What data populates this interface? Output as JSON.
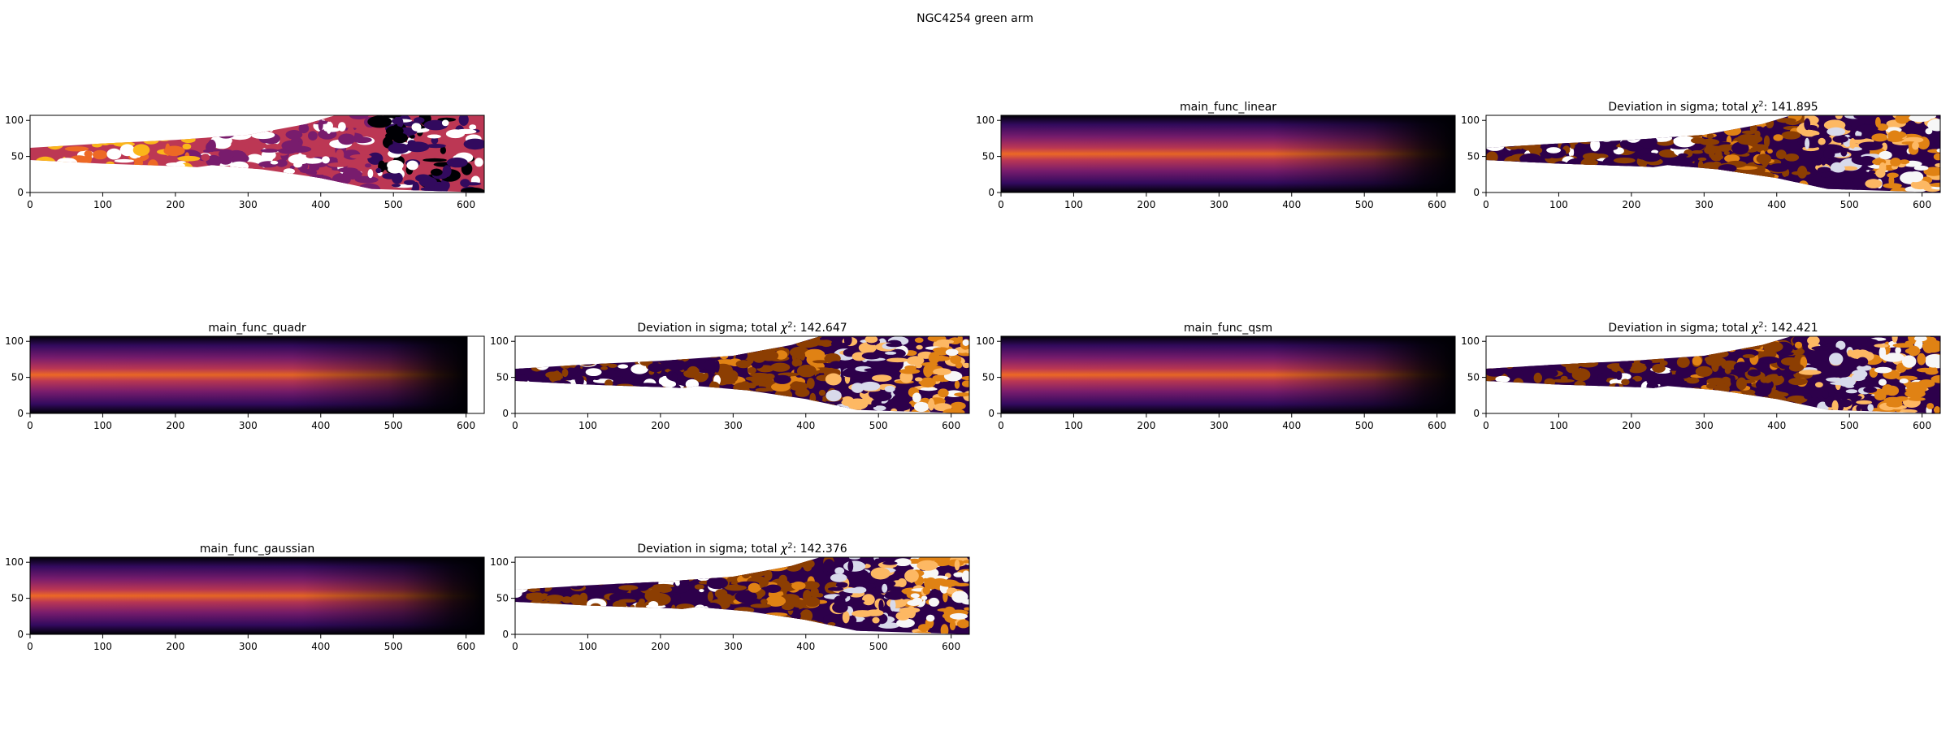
{
  "figure": {
    "suptitle": "NGC4254 green arm"
  },
  "chart_data": [
    {
      "id": "observed",
      "type": "heatmap",
      "title": "",
      "kind": "observed",
      "colormap": "inferno",
      "xlim": [
        0,
        625
      ],
      "ylim": [
        0,
        107
      ],
      "xticks": [
        0,
        100,
        200,
        300,
        400,
        500,
        600
      ],
      "yticks": [
        0,
        50,
        100
      ]
    },
    {
      "id": "linear-model",
      "type": "heatmap",
      "title": "main_func_linear",
      "kind": "model",
      "colormap": "inferno",
      "xlim": [
        0,
        625
      ],
      "ylim": [
        0,
        107
      ],
      "xticks": [
        0,
        100,
        200,
        300,
        400,
        500,
        600
      ],
      "yticks": [
        0,
        50,
        100
      ]
    },
    {
      "id": "linear-deviation",
      "type": "heatmap",
      "title": "Deviation in sigma; total χ²: 141.895",
      "title_prefix": "Deviation in sigma; total ",
      "title_suffix": ": 141.895",
      "chi2": 141.895,
      "kind": "deviation",
      "colormap": "PuOr",
      "xlim": [
        0,
        625
      ],
      "ylim": [
        0,
        107
      ],
      "xticks": [
        0,
        100,
        200,
        300,
        400,
        500,
        600
      ],
      "yticks": [
        0,
        50,
        100
      ]
    },
    {
      "id": "quadr-model",
      "type": "heatmap",
      "title": "main_func_quadr",
      "kind": "model",
      "colormap": "inferno",
      "xlim": [
        0,
        625
      ],
      "ylim": [
        0,
        107
      ],
      "data_xmax": 602,
      "xticks": [
        0,
        100,
        200,
        300,
        400,
        500,
        600
      ],
      "yticks": [
        0,
        50,
        100
      ]
    },
    {
      "id": "quadr-deviation",
      "type": "heatmap",
      "title": "Deviation in sigma; total χ²: 142.647",
      "title_prefix": "Deviation in sigma; total ",
      "title_suffix": ": 142.647",
      "chi2": 142.647,
      "kind": "deviation",
      "colormap": "PuOr",
      "xlim": [
        0,
        625
      ],
      "ylim": [
        0,
        107
      ],
      "xticks": [
        0,
        100,
        200,
        300,
        400,
        500,
        600
      ],
      "yticks": [
        0,
        50,
        100
      ]
    },
    {
      "id": "qsm-model",
      "type": "heatmap",
      "title": "main_func_qsm",
      "kind": "model",
      "colormap": "inferno",
      "xlim": [
        0,
        625
      ],
      "ylim": [
        0,
        107
      ],
      "xticks": [
        0,
        100,
        200,
        300,
        400,
        500,
        600
      ],
      "yticks": [
        0,
        50,
        100
      ]
    },
    {
      "id": "qsm-deviation",
      "type": "heatmap",
      "title": "Deviation in sigma; total χ²: 142.421",
      "title_prefix": "Deviation in sigma; total ",
      "title_suffix": ": 142.421",
      "chi2": 142.421,
      "kind": "deviation",
      "colormap": "PuOr",
      "xlim": [
        0,
        625
      ],
      "ylim": [
        0,
        107
      ],
      "xticks": [
        0,
        100,
        200,
        300,
        400,
        500,
        600
      ],
      "yticks": [
        0,
        50,
        100
      ]
    },
    {
      "id": "gaussian-model",
      "type": "heatmap",
      "title": "main_func_gaussian",
      "kind": "model",
      "colormap": "inferno",
      "xlim": [
        0,
        625
      ],
      "ylim": [
        0,
        107
      ],
      "xticks": [
        0,
        100,
        200,
        300,
        400,
        500,
        600
      ],
      "yticks": [
        0,
        50,
        100
      ]
    },
    {
      "id": "gaussian-deviation",
      "type": "heatmap",
      "title": "Deviation in sigma; total χ²: 142.376",
      "title_prefix": "Deviation in sigma; total ",
      "title_suffix": ": 142.376",
      "chi2": 142.376,
      "kind": "deviation",
      "colormap": "PuOr",
      "xlim": [
        0,
        625
      ],
      "ylim": [
        0,
        107
      ],
      "xticks": [
        0,
        100,
        200,
        300,
        400,
        500,
        600
      ],
      "yticks": [
        0,
        50,
        100
      ]
    }
  ],
  "colors": {
    "inferno_stops": [
      "#000004",
      "#320a5e",
      "#781c6d",
      "#bc3754",
      "#ed6925",
      "#fbb61a",
      "#fcffa4"
    ],
    "deviation_dark": "#2d004b",
    "deviation_mid": "#f7f7f7",
    "deviation_light": "#b35806",
    "deviation_orange": "#8c3e02"
  }
}
